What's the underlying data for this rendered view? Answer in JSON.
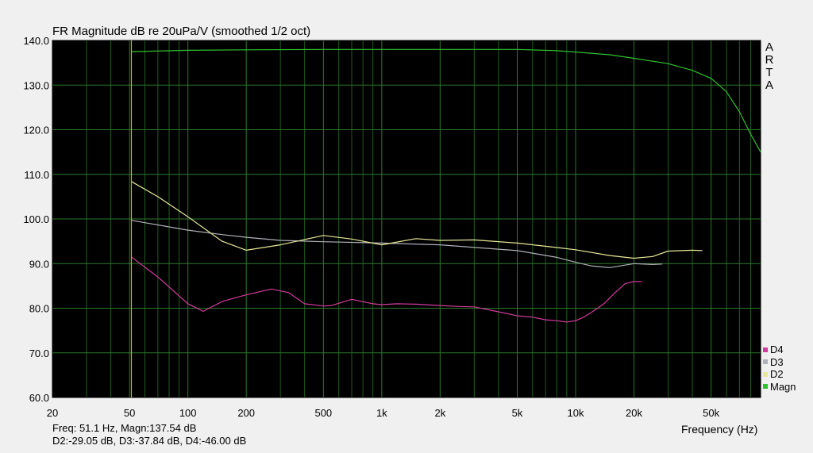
{
  "chart_data": {
    "type": "line",
    "title": "FR Magnitude dB re 20uPa/V (smoothed 1/2 oct)",
    "x_scale": "log",
    "xlim": [
      20,
      90000
    ],
    "ylim": [
      60,
      140
    ],
    "xlabel": "Frequency (Hz)",
    "ylabel": "",
    "x_ticks": [
      {
        "value": 20,
        "label": "20"
      },
      {
        "value": 50,
        "label": "50"
      },
      {
        "value": 100,
        "label": "100"
      },
      {
        "value": 200,
        "label": "200"
      },
      {
        "value": 500,
        "label": "500"
      },
      {
        "value": 1000,
        "label": "1k"
      },
      {
        "value": 2000,
        "label": "2k"
      },
      {
        "value": 5000,
        "label": "5k"
      },
      {
        "value": 10000,
        "label": "10k"
      },
      {
        "value": 20000,
        "label": "20k"
      },
      {
        "value": 50000,
        "label": "50k"
      }
    ],
    "y_ticks": [
      "60.0",
      "70.0",
      "80.0",
      "90.0",
      "100.0",
      "110.0",
      "120.0",
      "130.0",
      "140.0"
    ],
    "y_tick_values": [
      60,
      70,
      80,
      90,
      100,
      110,
      120,
      130,
      140
    ],
    "grid": true,
    "background": "#000000",
    "grid_color": "#1f5c1f",
    "cursor": {
      "x": 51.1,
      "color": "#c8b400"
    },
    "legend_position": "bottom-right",
    "series": [
      {
        "name": "Magn",
        "color": "#2fc22f",
        "x": [
          51,
          100,
          200,
          500,
          1000,
          2000,
          5000,
          8000,
          10000,
          15000,
          20000,
          30000,
          40000,
          50000,
          60000,
          70000,
          80000,
          90000
        ],
        "y": [
          137.5,
          137.8,
          137.9,
          138.0,
          138.0,
          138.0,
          138.0,
          137.7,
          137.4,
          136.8,
          136.0,
          134.8,
          133.3,
          131.5,
          128.5,
          124.0,
          119.0,
          115.0
        ]
      },
      {
        "name": "D2",
        "color": "#e8e89a",
        "x": [
          51,
          70,
          100,
          150,
          200,
          300,
          500,
          700,
          1000,
          1500,
          2000,
          3000,
          5000,
          8000,
          10000,
          15000,
          20000,
          25000,
          30000,
          40000,
          45000
        ],
        "y": [
          108.4,
          105.0,
          100.5,
          95.0,
          93.0,
          94.2,
          96.3,
          95.5,
          94.2,
          95.6,
          95.2,
          95.3,
          94.6,
          93.6,
          93.1,
          91.8,
          91.2,
          91.6,
          92.8,
          93.0,
          92.9
        ]
      },
      {
        "name": "D3",
        "color": "#b0b0b8",
        "x": [
          51,
          100,
          150,
          200,
          300,
          500,
          1000,
          2000,
          5000,
          8000,
          10000,
          12000,
          15000,
          20000,
          25000,
          28000
        ],
        "y": [
          99.7,
          97.5,
          96.5,
          95.9,
          95.2,
          94.9,
          94.6,
          94.2,
          92.9,
          91.4,
          90.3,
          89.5,
          89.1,
          90.0,
          89.8,
          89.9
        ]
      },
      {
        "name": "D4",
        "color": "#d23c9c",
        "x": [
          51,
          70,
          100,
          120,
          150,
          200,
          270,
          330,
          400,
          500,
          550,
          700,
          900,
          1000,
          1200,
          1500,
          2000,
          2500,
          3000,
          4000,
          5000,
          6000,
          7000,
          8000,
          9000,
          10000,
          11000,
          12000,
          14000,
          16000,
          18000,
          20000,
          22000
        ],
        "y": [
          91.5,
          87.0,
          81.0,
          79.3,
          81.5,
          83.0,
          84.3,
          83.5,
          81.0,
          80.5,
          80.6,
          82.0,
          81.0,
          80.8,
          81.0,
          80.9,
          80.6,
          80.4,
          80.3,
          79.2,
          78.3,
          78.0,
          77.4,
          77.2,
          76.9,
          77.2,
          78.0,
          79.0,
          81.0,
          83.5,
          85.5,
          86.0,
          86.0
        ]
      }
    ]
  },
  "brand": "ARTA",
  "readout": {
    "line1": "Freq: 51.1 Hz, Magn:137.54 dB",
    "line2": "D2:-29.05 dB, D3:-37.84 dB, D4:-46.00 dB"
  },
  "legend": [
    {
      "name": "D4",
      "color": "#d23c9c"
    },
    {
      "name": "D3",
      "color": "#b0b0b8"
    },
    {
      "name": "D2",
      "color": "#e8e89a"
    },
    {
      "name": "Magn",
      "color": "#2fc22f"
    }
  ]
}
